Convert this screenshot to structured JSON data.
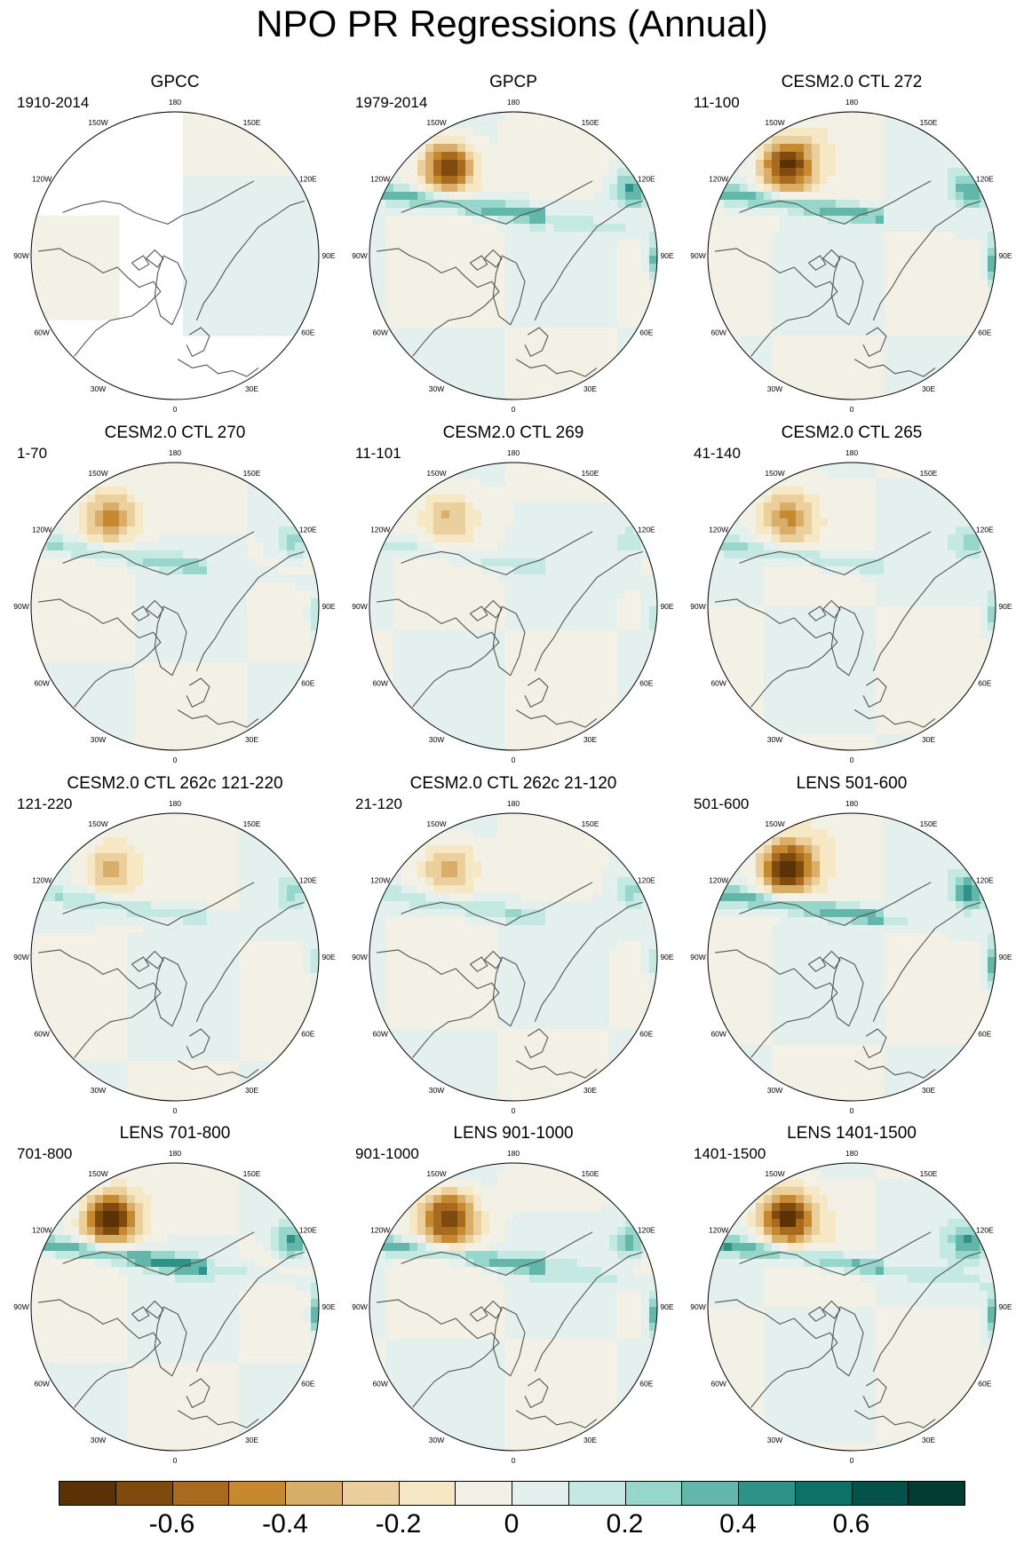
{
  "figure": {
    "title": "NPO PR Regressions (Annual)"
  },
  "panels": [
    {
      "title": "GPCC",
      "period": "1910-2014",
      "style": "gpcc",
      "amp": 0.15,
      "land_mask": true
    },
    {
      "title": "GPCP",
      "period": "1979-2014",
      "style": "gpcp",
      "amp": 0.75
    },
    {
      "title": "CESM2.0 CTL 272",
      "period": "11-100",
      "style": "model",
      "amp": 0.7
    },
    {
      "title": "CESM2.0 CTL 270",
      "period": "1-70",
      "style": "model",
      "amp": 0.45
    },
    {
      "title": "CESM2.0 CTL 269",
      "period": "11-101",
      "style": "model",
      "amp": 0.3
    },
    {
      "title": "CESM2.0 CTL 265",
      "period": "41-140",
      "style": "model",
      "amp": 0.4
    },
    {
      "title": "CESM2.0 CTL 262c 121-220",
      "period": "121-220",
      "style": "model",
      "amp": 0.35
    },
    {
      "title": "CESM2.0 CTL 262c 21-120",
      "period": "21-120",
      "style": "model",
      "amp": 0.4
    },
    {
      "title": "LENS 501-600",
      "period": "501-600",
      "style": "model",
      "amp": 0.75
    },
    {
      "title": "LENS 701-800",
      "period": "701-800",
      "style": "model",
      "amp": 0.8
    },
    {
      "title": "LENS 901-1000",
      "period": "901-1000",
      "style": "model",
      "amp": 0.7
    },
    {
      "title": "LENS 1401-1500",
      "period": "1401-1500",
      "style": "model",
      "amp": 0.7
    }
  ],
  "longitude_labels": [
    {
      "lon": 180,
      "text": "180"
    },
    {
      "lon": 150,
      "text": "150E"
    },
    {
      "lon": 120,
      "text": "120E"
    },
    {
      "lon": 90,
      "text": "90E"
    },
    {
      "lon": 60,
      "text": "60E"
    },
    {
      "lon": 30,
      "text": "30E"
    },
    {
      "lon": 0,
      "text": "0"
    },
    {
      "lon": -30,
      "text": "30W"
    },
    {
      "lon": -60,
      "text": "60W"
    },
    {
      "lon": -90,
      "text": "90W"
    },
    {
      "lon": -120,
      "text": "120W"
    },
    {
      "lon": -150,
      "text": "150W"
    }
  ],
  "colorbar": {
    "colors": [
      "#5a3206",
      "#7f4a0d",
      "#a86a1f",
      "#c7892f",
      "#d9ae69",
      "#ebd09e",
      "#f6e7c5",
      "#f3f1e6",
      "#e4f0ee",
      "#c4e9e2",
      "#97d6cb",
      "#62b6aa",
      "#2f9288",
      "#0f7068",
      "#045249",
      "#003c30"
    ],
    "tick_values": [
      -0.6,
      -0.4,
      -0.2,
      0,
      0.2,
      0.4,
      0.6
    ],
    "tick_labels": [
      "-0.6",
      "-0.4",
      "-0.2",
      "0",
      "0.2",
      "0.4",
      "0.6"
    ],
    "range": [
      -0.8,
      0.8
    ]
  }
}
